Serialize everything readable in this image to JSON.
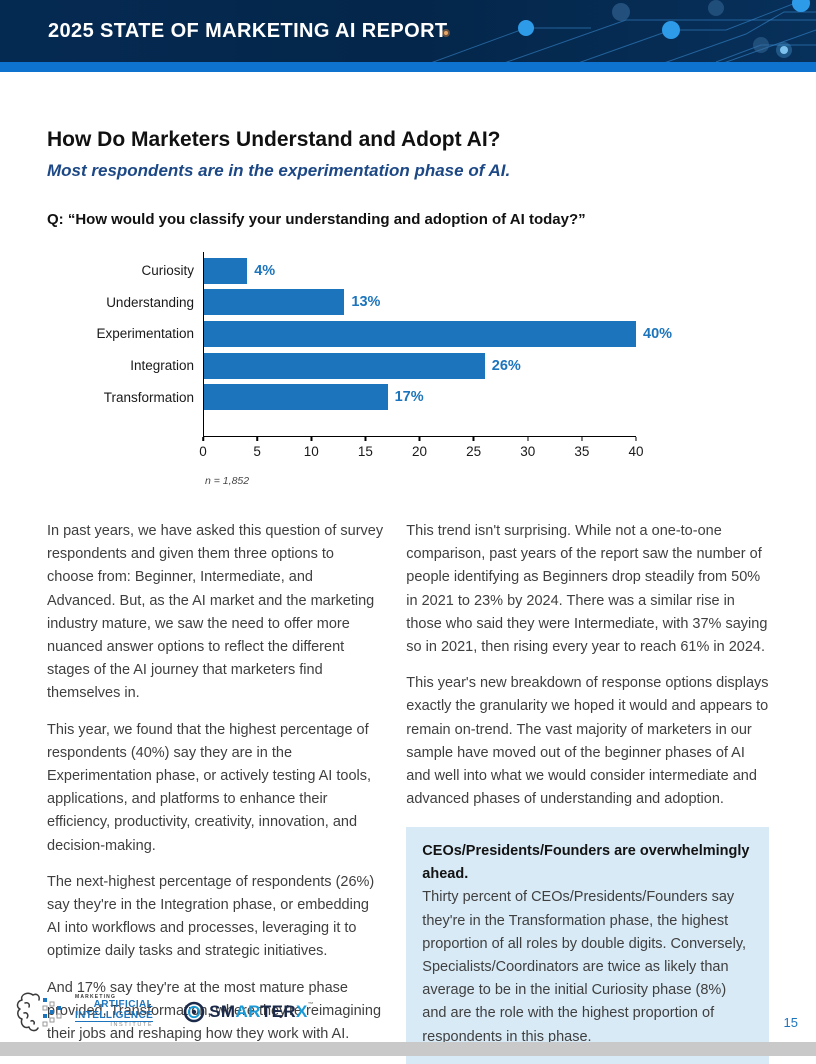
{
  "header": {
    "title": "2025 STATE OF MARKETING AI REPORT"
  },
  "page": {
    "title": "How Do Marketers Understand and Adopt AI?",
    "subtitle": "Most respondents are in the experimentation phase of AI.",
    "question": "Q: “How would you classify your understanding and adoption of AI today?”"
  },
  "chart_data": {
    "type": "bar",
    "orientation": "horizontal",
    "categories": [
      "Curiosity",
      "Understanding",
      "Experimentation",
      "Integration",
      "Transformation"
    ],
    "values": [
      4,
      13,
      40,
      26,
      17
    ],
    "value_labels": [
      "4%",
      "13%",
      "40%",
      "26%",
      "17%"
    ],
    "xlim": [
      0,
      40
    ],
    "x_ticks": [
      0,
      5,
      10,
      15,
      20,
      25,
      30,
      35,
      40
    ],
    "note": "n = 1,852",
    "bar_color": "#1c75bc",
    "value_label_color": "#1c75bc",
    "grid": false,
    "legend": false
  },
  "body": {
    "left_paragraphs": [
      "In past years, we have asked this question of survey respondents and given them three options to choose from: Beginner, Intermediate, and Advanced. But, as the AI market and the marketing industry mature, we saw the need to offer more nuanced answer options to reflect the different stages of the AI journey that marketers find themselves in.",
      "This year, we found that the highest percentage of respondents (40%) say they are in the Experimentation phase, or actively testing AI tools, applications, and platforms to enhance their efficiency, productivity, creativity, innovation, and decision-making.",
      "The next-highest percentage of respondents (26%) say they're in the Integration phase, or embedding AI into workflows and processes, leveraging it to optimize daily tasks and strategic initiatives.",
      "And 17% say they're at the most mature phase provided, Transformation, where they're reimagining their jobs and reshaping how they work with AI."
    ],
    "right_paragraphs": [
      "This trend isn't surprising. While not a one-to-one comparison, past years of the report saw the number of people identifying as Beginners drop steadily from 50% in 2021 to 23% by 2024. There was a similar rise in those who said they were Intermediate, with 37% saying so in 2021, then rising every year to reach 61% in 2024.",
      "This year's new breakdown of response options displays exactly the granularity we hoped it would and appears to remain on-trend. The vast majority of marketers in our sample have moved out of the beginner phases of AI and well into what we would consider intermediate and advanced phases of understanding and adoption."
    ]
  },
  "callout": {
    "heading": "CEOs/Presidents/Founders are overwhelmingly ahead.",
    "body": "Thirty percent of CEOs/Presidents/Founders say they're in the Transformation phase, the highest proportion of all roles by double digits. Conversely, Specialists/Coordinators are twice as likely than average to be in the initial Curiosity phase (8%) and are the role with the highest proportion of respondents in this phase.",
    "bg_color": "#d8eaf6"
  },
  "footer": {
    "maii": {
      "marketing": "MARKETING",
      "artificial": "ARTIFICIAL",
      "intelligence": "INTELLIGENCE",
      "institute": "INSTITUTE"
    },
    "smarterx": {
      "seg1": "SM",
      "seg2": "AR",
      "seg3": "TER",
      "seg4": "X",
      "tm": "™"
    },
    "page_number": "15"
  },
  "colors": {
    "header_navy": "#04264a",
    "stripe_blue": "#0e72cf",
    "bar_blue": "#1c75bc",
    "subtitle_blue": "#1d4886",
    "callout_bg": "#d8eaf6",
    "smarterx_blue": "#1c9ad6",
    "smarterx_navy": "#1b2a4a",
    "bottom_bar_gray": "#c9c9c9"
  }
}
